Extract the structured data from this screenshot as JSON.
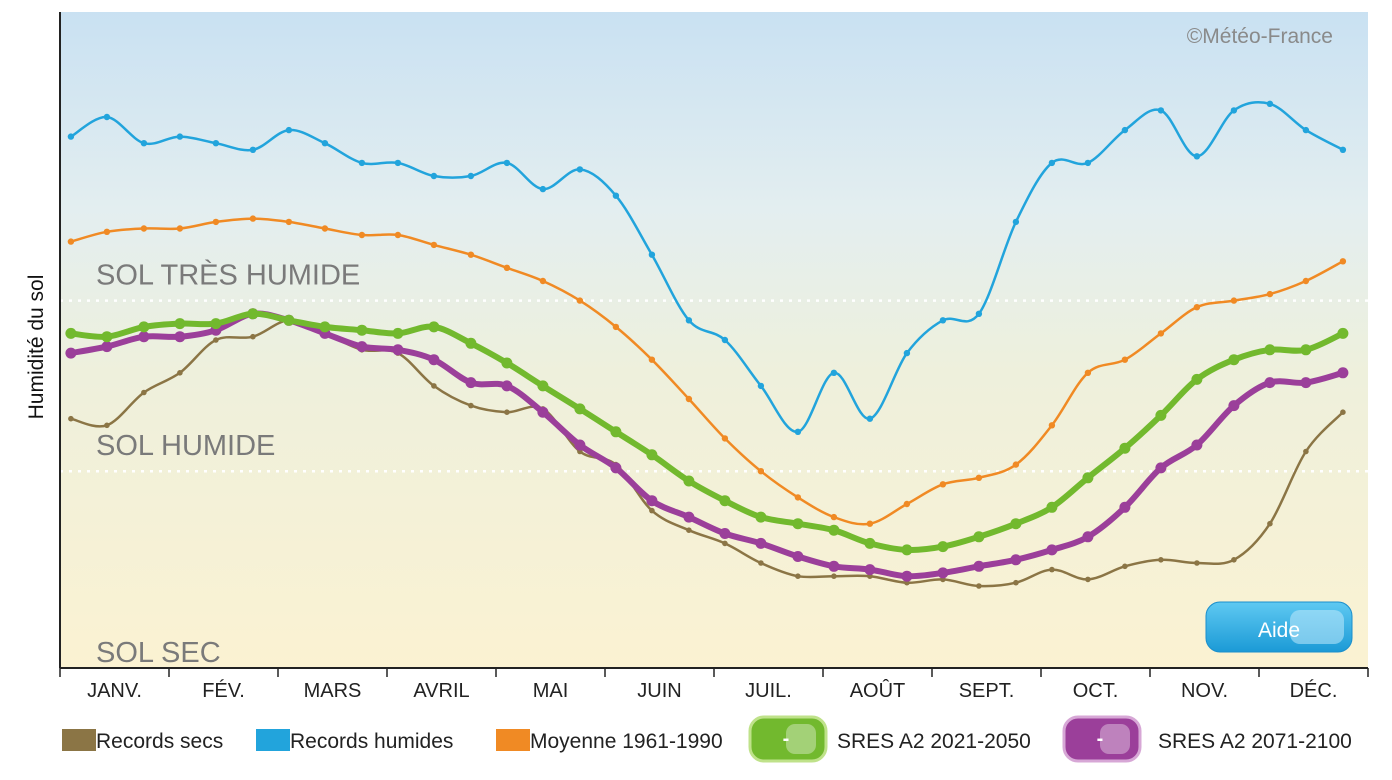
{
  "copyright": "©Météo-France",
  "help_button": "Aide",
  "colors": {
    "records_secs": "#8b7545",
    "records_humides": "#22a4dc",
    "moyenne": "#f08a24",
    "sres_2021_2050": "#72b92e",
    "sres_2071_2100": "#9b3f9a"
  },
  "chart_data": {
    "type": "line",
    "ylabel": "Humidité du sol",
    "xlabel": "",
    "categories": [
      "JANV.",
      "FÉV.",
      "MARS",
      "AVRIL",
      "MAI",
      "JUIN",
      "JUIL.",
      "AOÛT",
      "SEPT.",
      "OCT.",
      "NOV.",
      "DÉC."
    ],
    "x_range": [
      0,
      12
    ],
    "y_range": [
      0,
      100
    ],
    "grid": false,
    "zones": [
      {
        "label": "SOL TRÈS HUMIDE",
        "from": 56,
        "to": 100
      },
      {
        "label": "SOL HUMIDE",
        "from": 30,
        "to": 56
      },
      {
        "label": "SOL SEC",
        "from": 0,
        "to": 30
      }
    ],
    "thresholds": [
      56,
      30
    ],
    "legend_position": "bottom",
    "series": [
      {
        "name": "Records humides",
        "key": "records_humides",
        "marker_dots": true,
        "x": [
          0.1,
          0.43,
          0.77,
          1.1,
          1.43,
          1.77,
          2.1,
          2.43,
          2.77,
          3.1,
          3.43,
          3.77,
          4.1,
          4.43,
          4.77,
          5.1,
          5.43,
          5.77,
          6.1,
          6.43,
          6.77,
          7.1,
          7.43,
          7.77,
          8.1,
          8.43,
          8.77,
          9.1,
          9.43,
          9.77,
          10.1,
          10.43,
          10.77,
          11.1,
          11.43,
          11.77
        ],
        "y": [
          81,
          84,
          80,
          81,
          80,
          79,
          82,
          80,
          77,
          77,
          75,
          75,
          77,
          73,
          76,
          72,
          63,
          53,
          50,
          43,
          36,
          45,
          38,
          48,
          53,
          54,
          68,
          77,
          77,
          82,
          85,
          78,
          85,
          86,
          82,
          79
        ]
      },
      {
        "name": "Moyenne 1961-1990",
        "key": "moyenne",
        "marker_dots": true,
        "x": [
          0.1,
          0.43,
          0.77,
          1.1,
          1.43,
          1.77,
          2.1,
          2.43,
          2.77,
          3.1,
          3.43,
          3.77,
          4.1,
          4.43,
          4.77,
          5.1,
          5.43,
          5.77,
          6.1,
          6.43,
          6.77,
          7.1,
          7.43,
          7.77,
          8.1,
          8.43,
          8.77,
          9.1,
          9.43,
          9.77,
          10.1,
          10.43,
          10.77,
          11.1,
          11.43,
          11.77
        ],
        "y": [
          65,
          66.5,
          67,
          67,
          68,
          68.5,
          68,
          67,
          66,
          66,
          64.5,
          63,
          61,
          59,
          56,
          52,
          47,
          41,
          35,
          30,
          26,
          23,
          22,
          25,
          28,
          29,
          31,
          37,
          45,
          47,
          51,
          55,
          56,
          57,
          59,
          62
        ]
      },
      {
        "name": "SRES A2 2021-2050",
        "key": "sres_2021_2050",
        "marker_dots": true,
        "x": [
          0.1,
          0.43,
          0.77,
          1.1,
          1.43,
          1.77,
          2.1,
          2.43,
          2.77,
          3.1,
          3.43,
          3.77,
          4.1,
          4.43,
          4.77,
          5.1,
          5.43,
          5.77,
          6.1,
          6.43,
          6.77,
          7.1,
          7.43,
          7.77,
          8.1,
          8.43,
          8.77,
          9.1,
          9.43,
          9.77,
          10.1,
          10.43,
          10.77,
          11.1,
          11.43,
          11.77
        ],
        "y": [
          51,
          50.5,
          52,
          52.5,
          52.5,
          54,
          53,
          52,
          51.5,
          51,
          52,
          49.5,
          46.5,
          43,
          39.5,
          36,
          32.5,
          28.5,
          25.5,
          23,
          22,
          21,
          19,
          18,
          18.5,
          20,
          22,
          24.5,
          29,
          33.5,
          38.5,
          44,
          47,
          48.5,
          48.5,
          51
        ]
      },
      {
        "name": "SRES A2 2071-2100",
        "key": "sres_2071_2100",
        "marker_dots": true,
        "x": [
          0.1,
          0.43,
          0.77,
          1.1,
          1.43,
          1.77,
          2.1,
          2.43,
          2.77,
          3.1,
          3.43,
          3.77,
          4.1,
          4.43,
          4.77,
          5.1,
          5.43,
          5.77,
          6.1,
          6.43,
          6.77,
          7.1,
          7.43,
          7.77,
          8.1,
          8.43,
          8.77,
          9.1,
          9.43,
          9.77,
          10.1,
          10.43,
          10.77,
          11.1,
          11.43,
          11.77
        ],
        "y": [
          48,
          49,
          50.5,
          50.5,
          51.5,
          54,
          53,
          51,
          49,
          48.5,
          47,
          43.5,
          43,
          39,
          34,
          30.5,
          25.5,
          23,
          20.5,
          19,
          17,
          15.5,
          15,
          14,
          14.5,
          15.5,
          16.5,
          18,
          20,
          24.5,
          30.5,
          34,
          40,
          43.5,
          43.5,
          45
        ]
      },
      {
        "name": "Records secs",
        "key": "records_secs",
        "marker_dots": true,
        "x": [
          0.1,
          0.43,
          0.77,
          1.1,
          1.43,
          1.77,
          2.1,
          2.43,
          2.77,
          3.1,
          3.43,
          3.77,
          4.1,
          4.43,
          4.77,
          5.1,
          5.43,
          5.77,
          6.1,
          6.43,
          6.77,
          7.1,
          7.43,
          7.77,
          8.1,
          8.43,
          8.77,
          9.1,
          9.43,
          9.77,
          10.1,
          10.43,
          10.77,
          11.1,
          11.43,
          11.77
        ],
        "y": [
          38,
          37,
          42,
          45,
          50,
          50.5,
          53,
          51,
          48.5,
          48,
          43,
          40,
          39,
          39.5,
          33,
          31,
          24,
          21,
          19,
          16,
          14,
          14,
          14,
          13,
          13.5,
          12.5,
          13,
          15,
          13.5,
          15.5,
          16.5,
          16,
          16.5,
          22,
          33,
          39
        ]
      }
    ]
  }
}
